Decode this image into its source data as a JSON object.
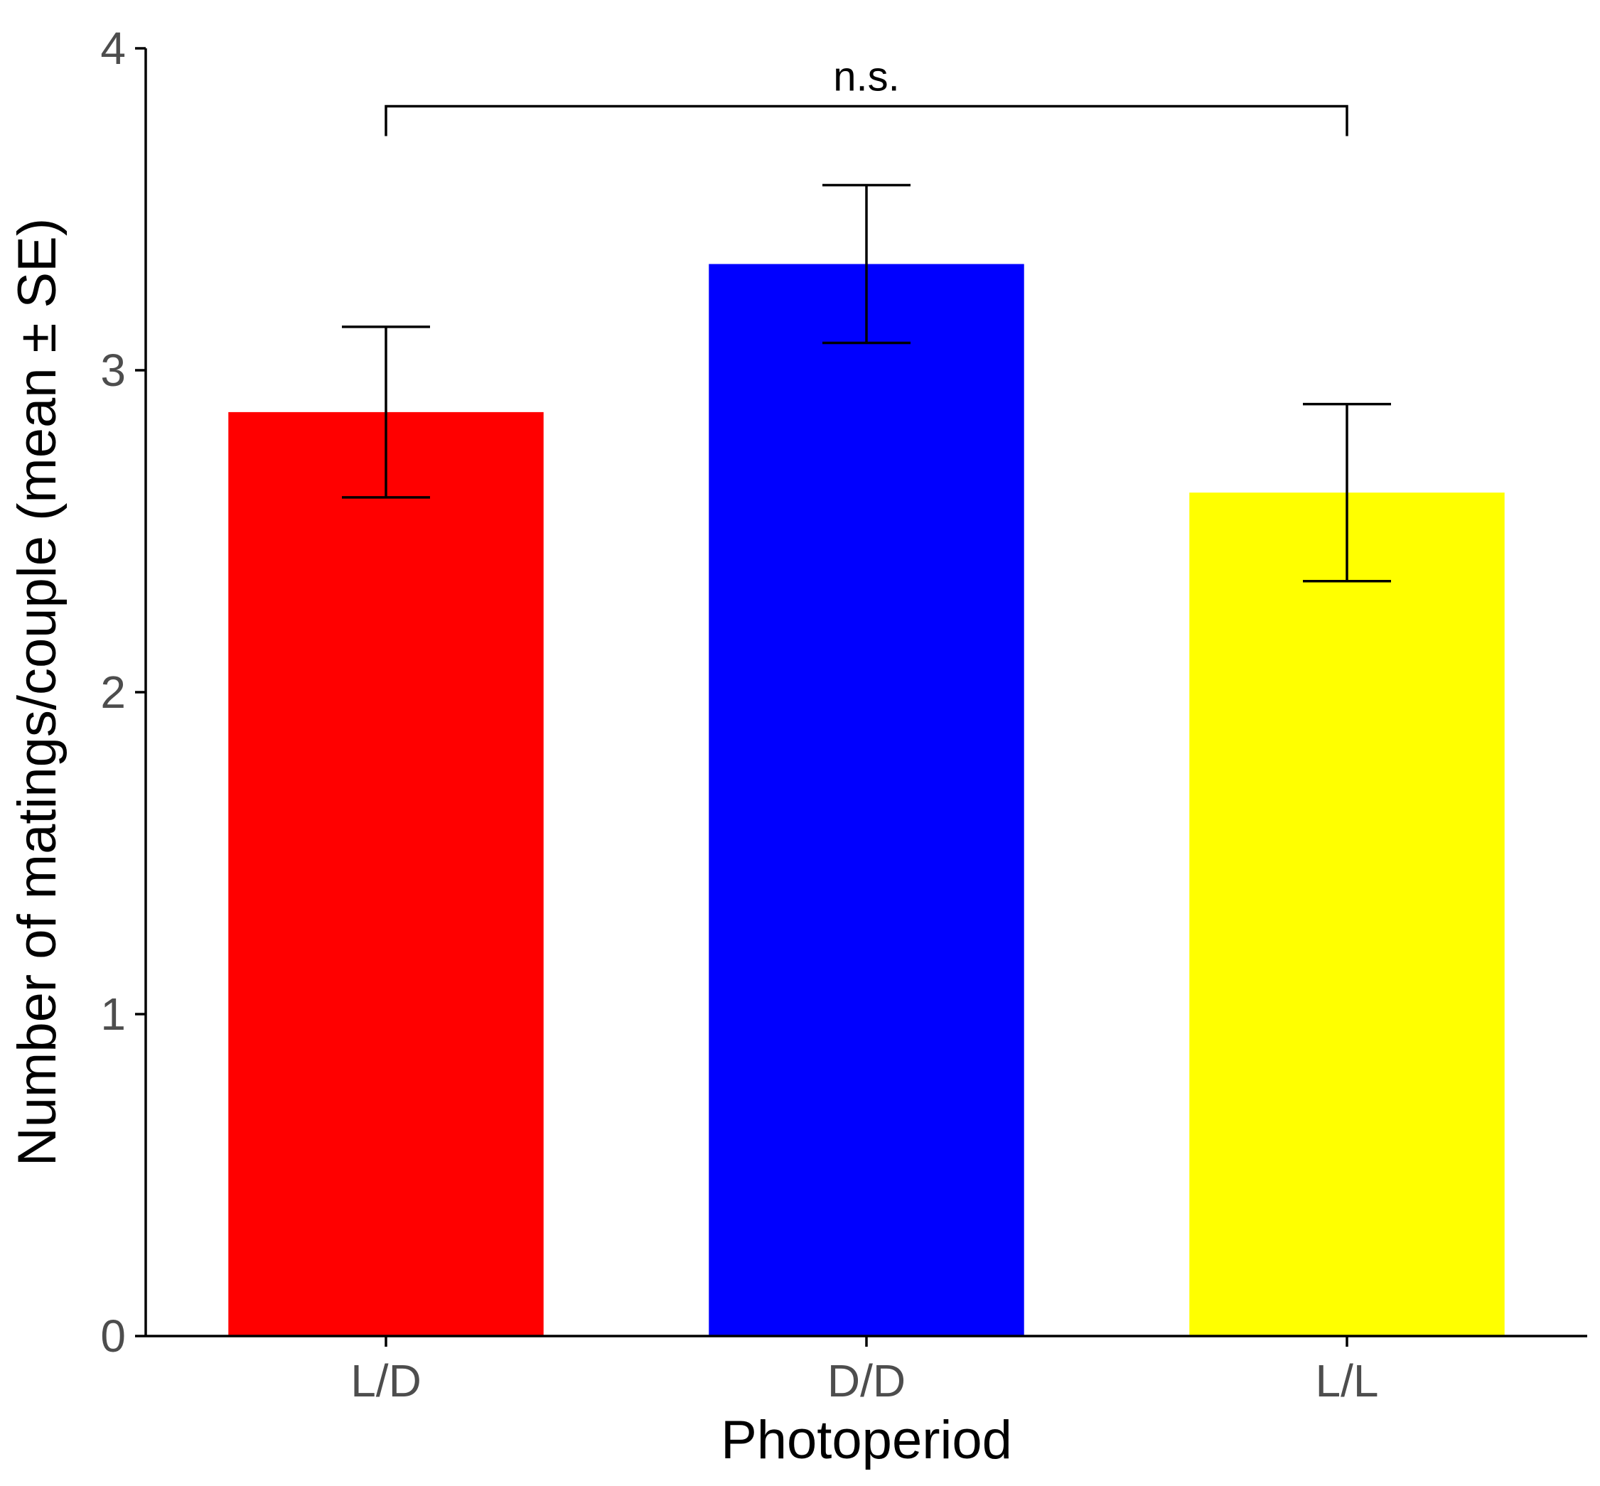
{
  "chart_data": {
    "type": "bar",
    "categories": [
      "L/D",
      "D/D",
      "L/L"
    ],
    "values": [
      2.87,
      3.33,
      2.62
    ],
    "errors": [
      0.265,
      0.245,
      0.275
    ],
    "colors": [
      "#ff0000",
      "#0000ff",
      "#ffff00"
    ],
    "xlabel": "Photoperiod",
    "ylabel": "Number of matings/couple (mean ± SE)",
    "ylim": [
      0,
      4
    ],
    "yticks": [
      "0",
      "1",
      "2",
      "3",
      "4"
    ],
    "grid": false,
    "significance": {
      "from": 0,
      "to": 2,
      "label": "n.s.",
      "level": 3.82
    }
  }
}
